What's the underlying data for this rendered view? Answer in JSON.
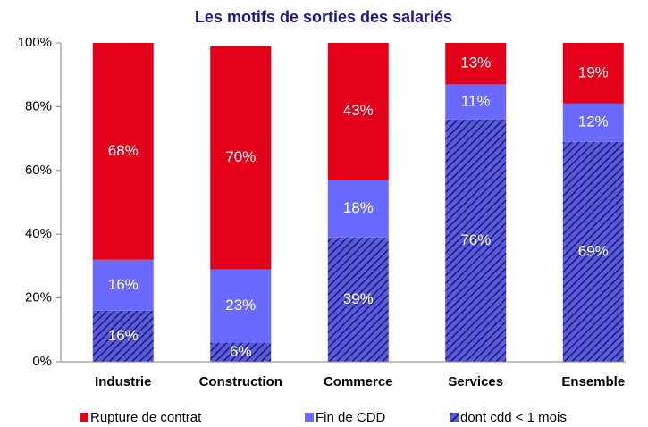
{
  "chart_data": {
    "type": "stacked-bar",
    "title": "Les motifs de sorties des salariés",
    "categories": [
      "Industrie",
      "Construction",
      "Commerce",
      "Services",
      "Ensemble"
    ],
    "series": [
      {
        "name": "Rupture de contrat",
        "color": "#e2001a",
        "values": [
          68,
          70,
          43,
          13,
          19
        ],
        "value_labels": [
          "68%",
          "70%",
          "43%",
          "13%",
          "19%"
        ]
      },
      {
        "name": "Fin de CDD",
        "color": "#6a6aff",
        "values": [
          16,
          23,
          18,
          11,
          12
        ],
        "value_labels": [
          "16%",
          "23%",
          "18%",
          "11%",
          "12%"
        ]
      },
      {
        "name": "dont cdd < 1 mois",
        "color": "#4a4ad0",
        "pattern": "hatch",
        "values": [
          16,
          6,
          39,
          76,
          69
        ],
        "value_labels": [
          "16%",
          "6%",
          "39%",
          "76%",
          "69%"
        ]
      }
    ],
    "ylim": [
      0,
      100
    ],
    "yticks": [
      {
        "value": 0,
        "label": "0%"
      },
      {
        "value": 20,
        "label": "20%"
      },
      {
        "value": 40,
        "label": "40%"
      },
      {
        "value": 60,
        "label": "60%"
      },
      {
        "value": 80,
        "label": "80%"
      },
      {
        "value": 100,
        "label": "100%"
      }
    ],
    "grid": false,
    "legend": "bottom"
  }
}
